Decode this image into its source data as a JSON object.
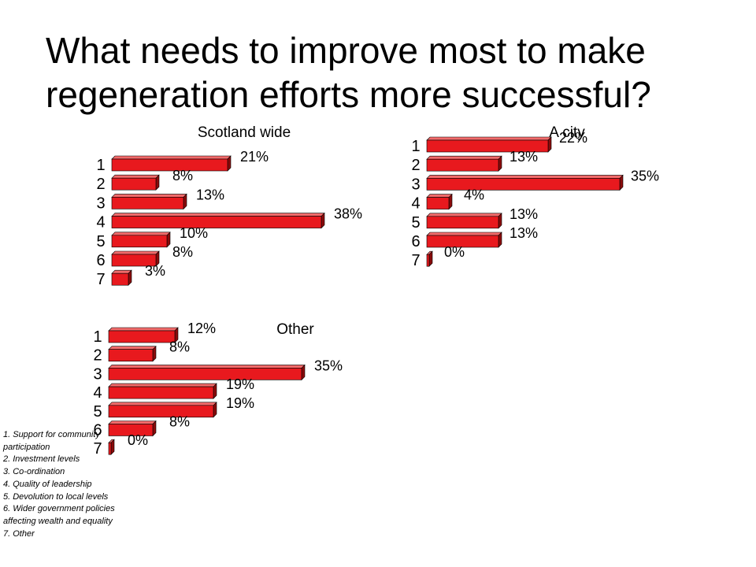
{
  "title": "What needs to improve most to make regeneration efforts more successful?",
  "legend_items": [
    "1. Support for community participation",
    "2. Investment levels",
    "3. Co-ordination",
    "4. Quality of leadership",
    "5. Devolution to local levels",
    "6. Wider government policies affecting wealth and equality",
    "7. Other"
  ],
  "colors": {
    "bar_front": "#e8191e",
    "bar_top": "#f26a6a",
    "bar_side": "#8a0b0b"
  },
  "chart_data": [
    {
      "type": "bar",
      "orientation": "horizontal",
      "title": "Scotland wide",
      "categories": [
        "1",
        "2",
        "3",
        "4",
        "5",
        "6",
        "7"
      ],
      "values": [
        21,
        8,
        13,
        38,
        10,
        8,
        3
      ],
      "data_labels": [
        "21%",
        "8%",
        "13%",
        "38%",
        "10%",
        "8%",
        "3%"
      ],
      "xlim": [
        0,
        40
      ]
    },
    {
      "type": "bar",
      "orientation": "horizontal",
      "title": "A city",
      "categories": [
        "1",
        "2",
        "3",
        "4",
        "5",
        "6",
        "7"
      ],
      "values": [
        22,
        13,
        35,
        4,
        13,
        13,
        0
      ],
      "data_labels": [
        "22%",
        "13%",
        "35%",
        "4%",
        "13%",
        "13%",
        "0%"
      ],
      "xlim": [
        0,
        40
      ]
    },
    {
      "type": "bar",
      "orientation": "horizontal",
      "title": "Other",
      "categories": [
        "1",
        "2",
        "3",
        "4",
        "5",
        "6",
        "7"
      ],
      "values": [
        12,
        8,
        35,
        19,
        19,
        8,
        0
      ],
      "data_labels": [
        "12%",
        "8%",
        "35%",
        "19%",
        "19%",
        "8%",
        "0%"
      ],
      "xlim": [
        0,
        40
      ]
    }
  ]
}
